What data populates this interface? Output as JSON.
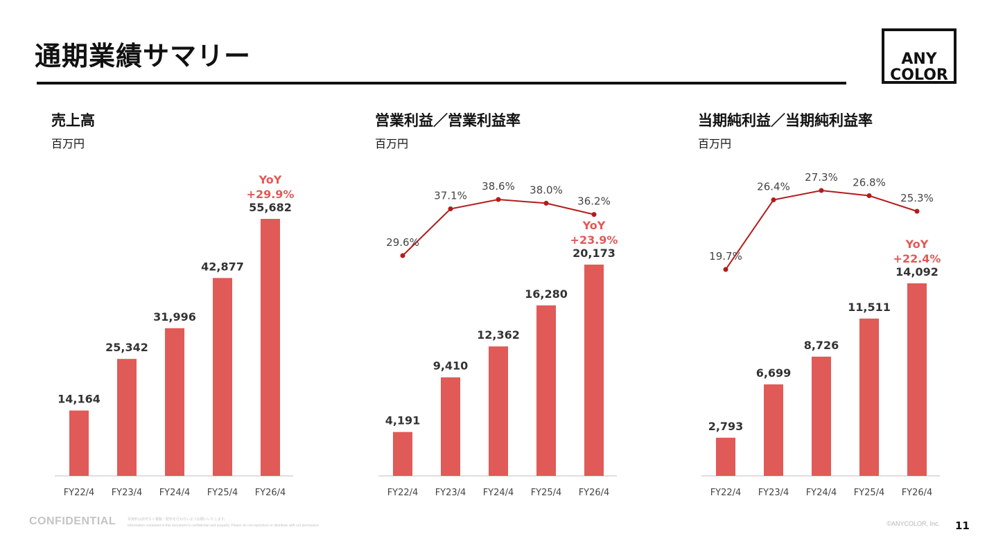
{
  "page_title": "通期業績サマリー",
  "logo": {
    "line1": "ANY",
    "line2": "COLOR"
  },
  "footer": {
    "confidential": "CONFIDENTIAL",
    "note_line1": "本資料は許可なく複製・配布を行わないようお願いいたします。",
    "note_line2": "Information contained in this document is confidential and property. Please do not reproduce or distribute with out permission.",
    "copyright": "©ANYCOLOR, Inc.",
    "page_number": "11"
  },
  "colors": {
    "bar": "#E05A57",
    "line": "#B41B1B",
    "yoy": "#E05A57",
    "axis": "#d4d4d4"
  },
  "chart_data": [
    {
      "type": "bar",
      "title": "売上高",
      "unit": "百万円",
      "categories": [
        "FY22/4",
        "FY23/4",
        "FY24/4",
        "FY25/4",
        "FY26/4"
      ],
      "values": [
        14164,
        25342,
        31996,
        42877,
        55682
      ],
      "value_labels": [
        "14,164",
        "25,342",
        "31,996",
        "42,877",
        "55,682"
      ],
      "yoy_label": "YoY",
      "yoy_value": "+29.9%"
    },
    {
      "type": "bar+line",
      "title": "営業利益／営業利益率",
      "unit": "百万円",
      "categories": [
        "FY22/4",
        "FY23/4",
        "FY24/4",
        "FY25/4",
        "FY26/4"
      ],
      "values": [
        4191,
        9410,
        12362,
        16280,
        20173
      ],
      "value_labels": [
        "4,191",
        "9,410",
        "12,362",
        "16,280",
        "20,173"
      ],
      "margin": [
        29.6,
        37.1,
        38.6,
        38.0,
        36.2
      ],
      "margin_labels": [
        "29.6%",
        "37.1%",
        "38.6%",
        "38.0%",
        "36.2%"
      ],
      "yoy_label": "YoY",
      "yoy_value": "+23.9%"
    },
    {
      "type": "bar+line",
      "title": "当期純利益／当期純利益率",
      "unit": "百万円",
      "categories": [
        "FY22/4",
        "FY23/4",
        "FY24/4",
        "FY25/4",
        "FY26/4"
      ],
      "values": [
        2793,
        6699,
        8726,
        11511,
        14092
      ],
      "value_labels": [
        "2,793",
        "6,699",
        "8,726",
        "11,511",
        "14,092"
      ],
      "margin": [
        19.7,
        26.4,
        27.3,
        26.8,
        25.3
      ],
      "margin_labels": [
        "19.7%",
        "26.4%",
        "27.3%",
        "26.8%",
        "25.3%"
      ],
      "yoy_label": "YoY",
      "yoy_value": "+22.4%"
    }
  ]
}
